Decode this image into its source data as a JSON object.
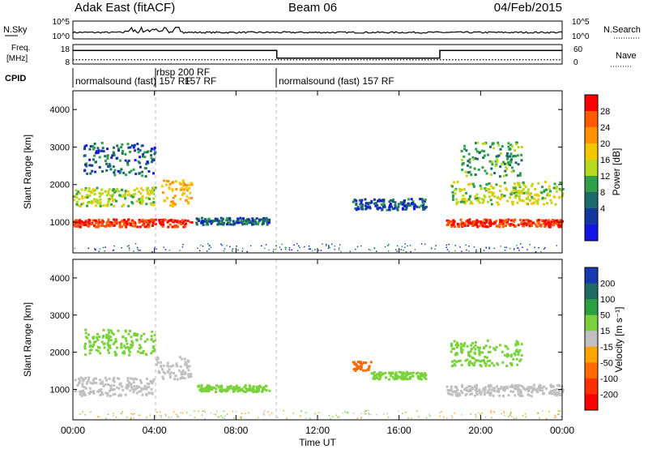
{
  "header": {
    "station": "Adak East (fitACF)",
    "beam": "Beam 06",
    "date": "04/Feb/2015"
  },
  "noise_panel": {
    "left_label": "N.Sky",
    "right_label": "N.Search",
    "left_ticks": [
      "10^5",
      "10^0"
    ],
    "right_ticks": [
      "10^5",
      "10^0"
    ]
  },
  "freq_panel": {
    "left_label_line1": "Freq.",
    "left_label_line2": "[MHz]",
    "right_label": "Nave",
    "left_ticks": [
      "18",
      "8"
    ],
    "right_ticks": [
      "60",
      "0"
    ]
  },
  "cpid_panel": {
    "label": "CPID",
    "segments": [
      {
        "start_hour": 0,
        "end_hour": 3.95,
        "text": "normalsound (fast) 157 RF"
      },
      {
        "start_hour": 3.95,
        "end_hour": 9.9,
        "text": "rbsp 200 RF"
      },
      {
        "start_hour": 3.95,
        "end_hour": 9.9,
        "text": "157 RF"
      },
      {
        "start_hour": 9.9,
        "end_hour": 24,
        "text": "normalsound (fast) 157 RF"
      }
    ]
  },
  "power_colorbar": {
    "title": "Power [dB]",
    "ticks": [
      "28",
      "24",
      "20",
      "16",
      "12",
      "8",
      "4"
    ],
    "colors": [
      "#ff0000",
      "#ff5a00",
      "#ff9400",
      "#f4c800",
      "#b8d820",
      "#2fa04a",
      "#1c6a6a",
      "#1438a0",
      "#1414e6"
    ]
  },
  "velocity_colorbar": {
    "title": "Velocity [m s⁻¹]",
    "ticks": [
      "200",
      "100",
      "50",
      "15",
      "-15",
      "-50",
      "-100",
      "-200"
    ],
    "colors": [
      "#1838b0",
      "#1e6a64",
      "#2aa040",
      "#7ad23a",
      "#c0c0c0",
      "#ffa400",
      "#ff6a00",
      "#ff3000",
      "#ff0000"
    ]
  },
  "x_axis": {
    "ticks": [
      "00:00",
      "04:00",
      "08:00",
      "12:00",
      "16:00",
      "20:00",
      "00:00"
    ],
    "label": "Time UT"
  },
  "y_axis": {
    "label": "Slant Range [km]",
    "ticks": [
      "1000",
      "2000",
      "3000",
      "4000"
    ]
  },
  "chart_data": [
    {
      "type": "line",
      "panel": "noise",
      "x_range_hours": [
        0,
        24
      ],
      "series": [
        {
          "x": [
            0,
            4,
            4.5,
            5.0,
            10,
            24
          ],
          "y": [
            50,
            60,
            500,
            80,
            40,
            40
          ]
        }
      ]
    },
    {
      "type": "line",
      "panel": "frequency",
      "x_range_hours": [
        0,
        24
      ],
      "ylim": [
        8,
        18
      ],
      "series": [
        {
          "x": [
            0,
            10,
            10,
            18,
            18,
            24
          ],
          "y": [
            15,
            15,
            11,
            11,
            15,
            15
          ]
        }
      ]
    },
    {
      "type": "heatmap",
      "panel": "power",
      "x_range_hours": [
        0,
        24
      ],
      "y_range_km": [
        180,
        4500
      ],
      "echo_regions": [
        {
          "t0": 0.0,
          "t1": 5.8,
          "r_center": 1000,
          "r_width": 200,
          "value_db": 28
        },
        {
          "t0": 0.0,
          "t1": 4.0,
          "r_center": 1700,
          "r_width": 500,
          "value_db": 14
        },
        {
          "t0": 4.3,
          "t1": 5.8,
          "r_center": 1800,
          "r_width": 700,
          "value_db": 20
        },
        {
          "t0": 0.5,
          "t1": 4.0,
          "r_center": 2700,
          "r_width": 900,
          "value_db": 6
        },
        {
          "t0": 6.0,
          "t1": 9.6,
          "r_center": 1050,
          "r_width": 180,
          "value_db": 6
        },
        {
          "t0": 13.7,
          "t1": 17.3,
          "r_center": 1500,
          "r_width": 300,
          "value_db": 5
        },
        {
          "t0": 18.3,
          "t1": 24,
          "r_center": 1000,
          "r_width": 200,
          "value_db": 28
        },
        {
          "t0": 18.5,
          "t1": 24,
          "r_center": 1800,
          "r_width": 600,
          "value_db": 14
        },
        {
          "t0": 19.0,
          "t1": 22.0,
          "r_center": 2700,
          "r_width": 900,
          "value_db": 10
        }
      ]
    },
    {
      "type": "heatmap",
      "panel": "velocity",
      "x_range_hours": [
        0,
        24
      ],
      "y_range_km": [
        180,
        4500
      ],
      "echo_regions": [
        {
          "t0": 0.0,
          "t1": 4.0,
          "r_center": 1100,
          "r_width": 500,
          "value_ms": 0
        },
        {
          "t0": 4.0,
          "t1": 5.8,
          "r_center": 1600,
          "r_width": 600,
          "value_ms": 0
        },
        {
          "t0": 0.5,
          "t1": 4.0,
          "r_center": 2300,
          "r_width": 700,
          "value_ms": 30
        },
        {
          "t0": 6.0,
          "t1": 9.6,
          "r_center": 1050,
          "r_width": 180,
          "value_ms": 40
        },
        {
          "t0": 13.7,
          "t1": 14.6,
          "r_center": 1650,
          "r_width": 250,
          "value_ms": -60
        },
        {
          "t0": 14.6,
          "t1": 17.3,
          "r_center": 1400,
          "r_width": 200,
          "value_ms": 40
        },
        {
          "t0": 18.3,
          "t1": 24,
          "r_center": 1000,
          "r_width": 300,
          "value_ms": 0
        },
        {
          "t0": 18.5,
          "t1": 22.0,
          "r_center": 2000,
          "r_width": 700,
          "value_ms": 40
        }
      ]
    }
  ]
}
